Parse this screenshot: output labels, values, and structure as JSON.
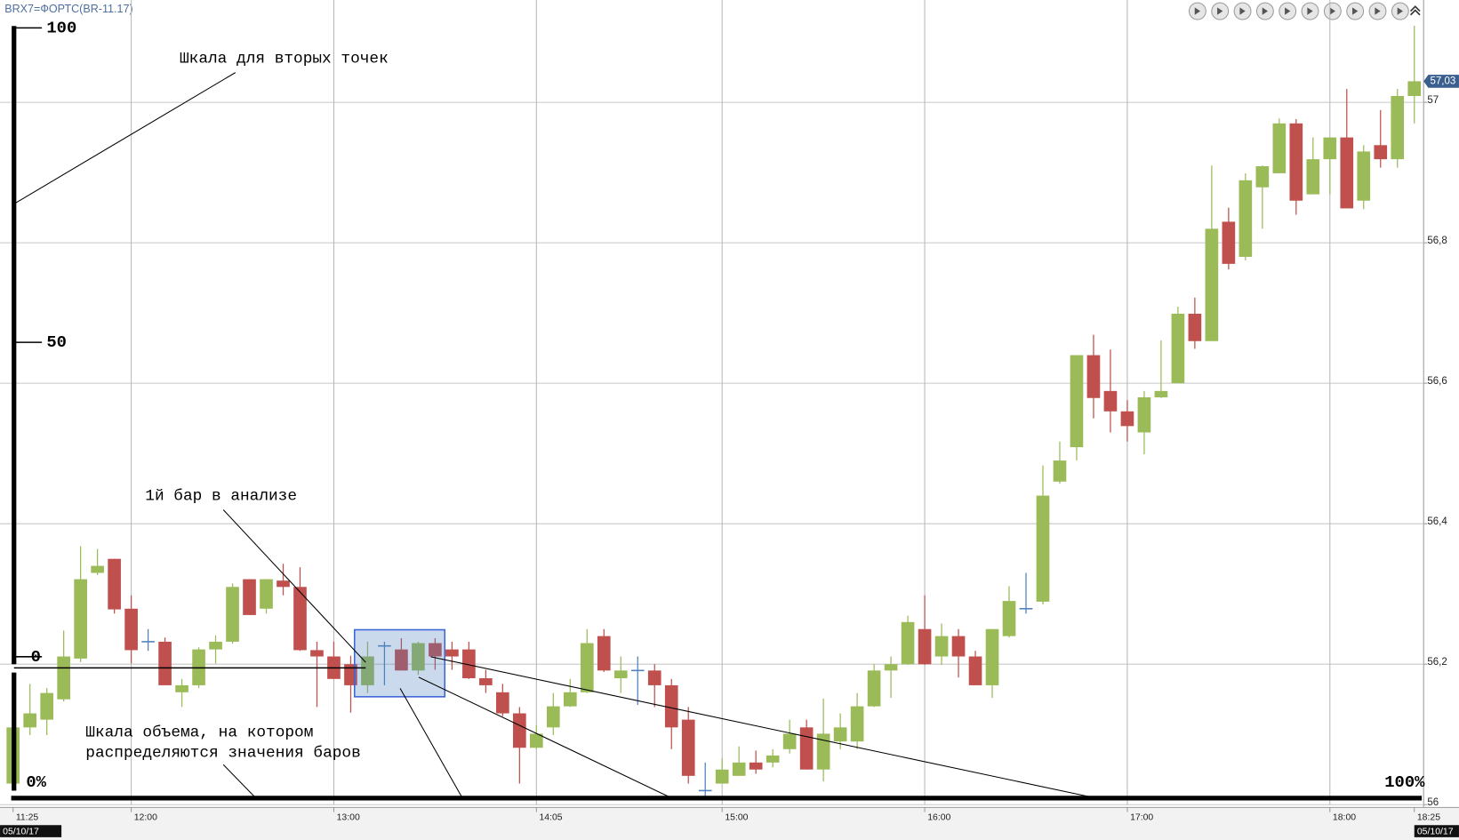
{
  "chart_data": {
    "type": "candlestick",
    "title": "BRX7=ФОРТС(BR-11.17)",
    "categories": [
      "11:25",
      null,
      null,
      null,
      null,
      null,
      null,
      "12:00",
      null,
      null,
      null,
      null,
      null,
      null,
      null,
      null,
      null,
      null,
      null,
      "13:00",
      null,
      null,
      null,
      null,
      null,
      null,
      null,
      null,
      null,
      null,
      null,
      "14:05",
      null,
      null,
      null,
      null,
      null,
      null,
      null,
      null,
      null,
      null,
      "15:00",
      null,
      null,
      null,
      null,
      null,
      null,
      null,
      null,
      null,
      null,
      null,
      "16:00",
      null,
      null,
      null,
      null,
      null,
      null,
      null,
      null,
      null,
      null,
      null,
      "17:00",
      null,
      null,
      null,
      null,
      null,
      null,
      null,
      null,
      null,
      null,
      null,
      "18:00",
      null,
      null,
      null,
      null,
      "18:25"
    ],
    "open": [
      56.03,
      56.11,
      56.121,
      56.15,
      56.208,
      56.33,
      56.35,
      56.279,
      56.232,
      56.232,
      56.16,
      56.17,
      56.221,
      56.232,
      56.321,
      56.279,
      56.319,
      56.31,
      56.22,
      56.211,
      56.2,
      56.17,
      56.226,
      56.221,
      56.191,
      56.23,
      56.221,
      56.221,
      56.18,
      56.16,
      56.13,
      56.081,
      56.11,
      56.14,
      56.16,
      56.24,
      56.18,
      56.191,
      56.191,
      56.17,
      56.121,
      56.02,
      56.03,
      56.041,
      56.06,
      56.06,
      56.079,
      56.11,
      56.05,
      56.09,
      56.09,
      56.14,
      56.191,
      56.2,
      56.25,
      56.211,
      56.24,
      56.211,
      56.17,
      56.24,
      56.279,
      56.289,
      56.46,
      56.509,
      56.64,
      56.589,
      56.56,
      56.53,
      56.58,
      56.6,
      56.699,
      56.66,
      56.83,
      56.78,
      56.879,
      56.899,
      56.97,
      56.869,
      56.919,
      56.95,
      56.86,
      56.939,
      56.919,
      57.009
    ],
    "high": [
      56.113,
      56.172,
      56.166,
      56.248,
      56.368,
      56.364,
      56.35,
      56.298,
      56.25,
      56.238,
      56.179,
      56.224,
      56.241,
      56.315,
      56.321,
      56.321,
      56.343,
      56.338,
      56.232,
      56.232,
      56.212,
      56.232,
      56.232,
      56.237,
      56.232,
      56.237,
      56.232,
      56.232,
      56.192,
      56.172,
      56.139,
      56.113,
      56.159,
      56.179,
      56.25,
      56.25,
      56.211,
      56.211,
      56.2,
      56.179,
      56.139,
      56.06,
      56.066,
      56.083,
      56.077,
      56.079,
      56.121,
      56.121,
      56.151,
      56.13,
      56.159,
      56.2,
      56.211,
      56.269,
      56.298,
      56.258,
      56.25,
      56.219,
      56.25,
      56.311,
      56.33,
      56.483,
      56.517,
      56.64,
      56.669,
      56.648,
      56.576,
      56.589,
      56.661,
      56.709,
      56.722,
      56.91,
      56.85,
      56.899,
      56.91,
      56.977,
      56.976,
      56.95,
      56.95,
      57.019,
      56.939,
      56.989,
      57.019,
      57.109
    ],
    "low": [
      56.026,
      56.099,
      56.099,
      56.147,
      56.203,
      56.327,
      56.272,
      56.201,
      56.219,
      56.17,
      56.139,
      56.166,
      56.201,
      56.229,
      56.27,
      56.272,
      56.298,
      56.219,
      56.139,
      56.179,
      56.131,
      56.159,
      56.17,
      56.191,
      56.185,
      56.192,
      56.192,
      56.179,
      56.159,
      56.126,
      56.03,
      56.079,
      56.099,
      56.139,
      56.159,
      56.189,
      56.159,
      56.142,
      56.139,
      56.079,
      56.03,
      56.009,
      56.03,
      56.041,
      56.044,
      56.053,
      56.073,
      56.05,
      56.033,
      56.079,
      56.079,
      56.139,
      56.152,
      56.199,
      56.199,
      56.199,
      56.181,
      56.17,
      56.152,
      56.238,
      56.272,
      56.285,
      56.457,
      56.49,
      56.55,
      56.53,
      56.517,
      56.499,
      56.579,
      56.6,
      56.649,
      56.66,
      56.762,
      56.775,
      56.82,
      56.899,
      56.84,
      56.869,
      56.869,
      56.849,
      56.848,
      56.907,
      56.907,
      56.97
    ],
    "close": [
      56.11,
      56.13,
      56.159,
      56.211,
      56.321,
      56.34,
      56.278,
      56.22,
      56.232,
      56.17,
      56.17,
      56.221,
      56.232,
      56.31,
      56.27,
      56.321,
      56.31,
      56.22,
      56.211,
      56.179,
      56.17,
      56.211,
      56.226,
      56.191,
      56.23,
      56.211,
      56.211,
      56.18,
      56.17,
      56.13,
      56.081,
      56.101,
      56.14,
      56.16,
      56.23,
      56.191,
      56.191,
      56.191,
      56.17,
      56.11,
      56.041,
      56.02,
      56.05,
      56.06,
      56.05,
      56.07,
      56.101,
      56.05,
      56.101,
      56.11,
      56.14,
      56.191,
      56.2,
      56.26,
      56.2,
      56.24,
      56.211,
      56.17,
      56.25,
      56.29,
      56.279,
      56.44,
      56.49,
      56.64,
      56.579,
      56.56,
      56.539,
      56.58,
      56.589,
      56.699,
      56.66,
      56.82,
      56.77,
      56.889,
      56.909,
      56.97,
      56.86,
      56.919,
      56.95,
      56.849,
      56.93,
      56.919,
      57.009,
      57.03
    ],
    "colors": {
      "up": "#9bbb59",
      "down": "#c0504d",
      "flat": "#4f81bd"
    },
    "ylim": [
      56,
      57.12
    ],
    "yticks": [
      56,
      {
        "value": 56.2,
        "label": "56,2"
      },
      {
        "value": 56.4,
        "label": "56,4"
      },
      {
        "value": 56.6,
        "label": "56,6"
      },
      {
        "value": 56.8,
        "label": "56,8"
      },
      57
    ],
    "grid": true,
    "last_price": {
      "value": 57.03,
      "label": "57,03"
    },
    "date_labels": [
      "05/10/17",
      "05/10/17"
    ],
    "annotations": {
      "second_points_scale": {
        "label": "Шкала для вторых точек",
        "ticks": [
          100,
          50,
          0
        ]
      },
      "first_bar": "1й бар в анализе",
      "volume_scale": {
        "lines": [
          "Шкала объема, на котором",
          "распределяются значения баров"
        ],
        "ticks": [
          {
            "value": 0,
            "label": "0%"
          },
          {
            "value": 100,
            "label": "100%"
          }
        ]
      }
    }
  }
}
